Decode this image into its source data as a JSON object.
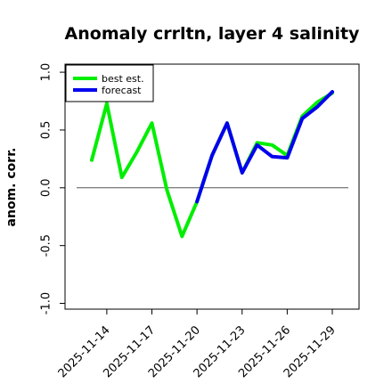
{
  "chart_data": {
    "type": "line",
    "title": "Anomaly crrltn, layer 4 salinity",
    "ylabel": "anom. corr.",
    "xlabel": "",
    "ylim": [
      -1.0,
      1.0
    ],
    "yticks": [
      "-1.0",
      "-0.5",
      "0.0",
      "0.5",
      "1.0"
    ],
    "ytick_values": [
      -1.0,
      -0.5,
      0.0,
      0.5,
      1.0
    ],
    "x_tick_labels": [
      "2025-11-14",
      "2025-11-17",
      "2025-11-20",
      "2025-11-23",
      "2025-11-26",
      "2025-11-29"
    ],
    "x_tick_index": [
      1,
      4,
      7,
      10,
      13,
      16
    ],
    "highlighted_tick": "2025-11-20",
    "highlight_color": "#228B22",
    "x_dates": [
      "2025-11-13",
      "2025-11-14",
      "2025-11-15",
      "2025-11-16",
      "2025-11-17",
      "2025-11-18",
      "2025-11-19",
      "2025-11-20",
      "2025-11-21",
      "2025-11-22",
      "2025-11-23",
      "2025-11-24",
      "2025-11-25",
      "2025-11-26",
      "2025-11-27",
      "2025-11-28",
      "2025-11-29"
    ],
    "reference_line": 0.0,
    "legend_position": "top-left",
    "grid": false,
    "series": [
      {
        "name": "best est.",
        "color": "#00ee00",
        "values": [
          0.24,
          0.73,
          0.09,
          0.31,
          0.56,
          -0.02,
          -0.42,
          -0.12,
          0.28,
          0.56,
          0.13,
          0.39,
          0.37,
          0.28,
          0.62,
          0.74,
          0.82
        ]
      },
      {
        "name": "forecast",
        "color": "#0000ee",
        "values": [
          null,
          null,
          null,
          null,
          null,
          null,
          null,
          -0.12,
          0.28,
          0.56,
          0.13,
          0.37,
          0.27,
          0.26,
          0.6,
          0.7,
          0.83
        ]
      }
    ]
  }
}
